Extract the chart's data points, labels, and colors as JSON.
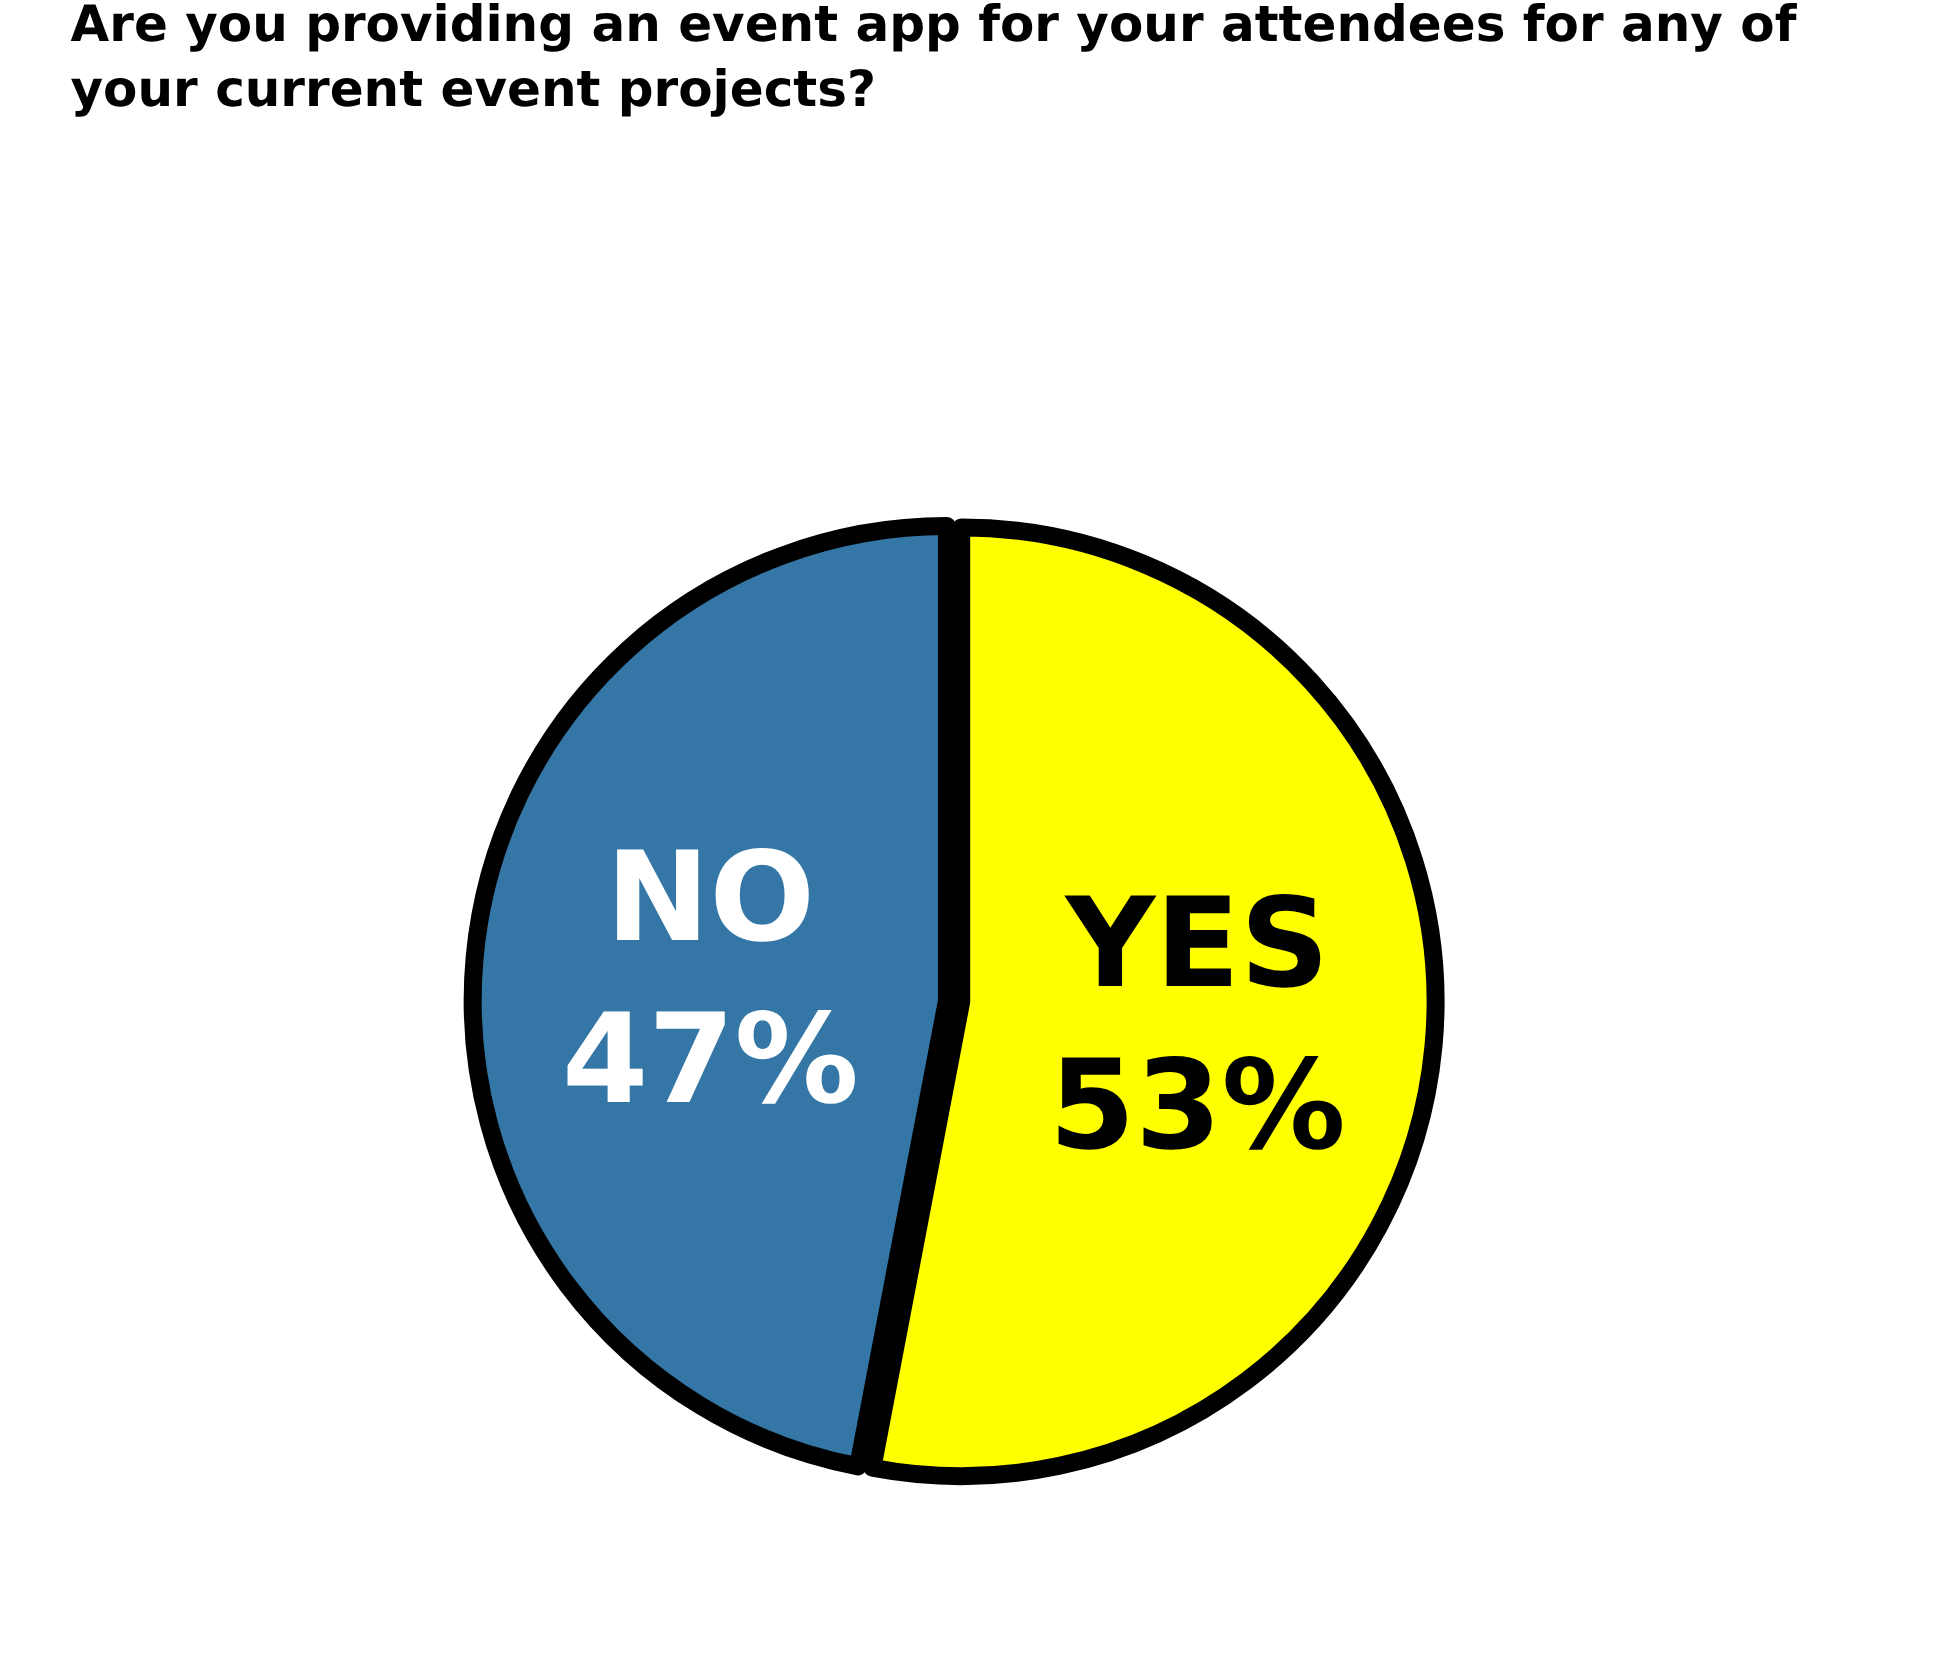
{
  "chart_data": {
    "type": "pie",
    "title": "Are you providing an event app for your attendees for any of your current event projects?",
    "categories": [
      "YES",
      "NO"
    ],
    "values": [
      53,
      47
    ],
    "value_labels": [
      "53%",
      "47%"
    ],
    "colors": [
      "#ffff00",
      "#3477a6"
    ]
  }
}
